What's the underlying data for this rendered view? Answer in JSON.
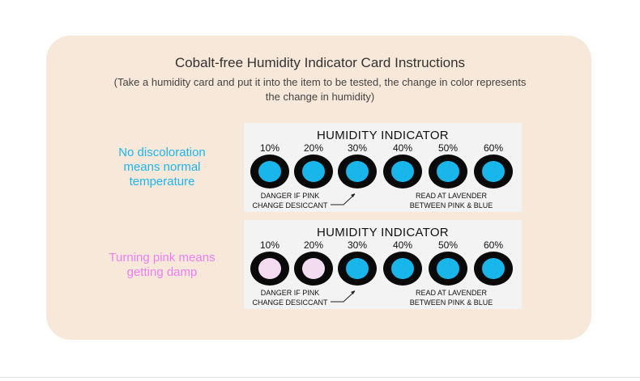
{
  "title": "Cobalt-free Humidity Indicator Card Instructions",
  "subtitle": "(Take a humidity card and put it into the item to be tested, the change in color represents the change in humidity)",
  "colors": {
    "panel": "#f7e8da",
    "normal_label": "#1fb4ee",
    "pink_label": "#f07ef0",
    "blue_dot": "#18b6ea",
    "pink_dot": "#f3dcf0"
  },
  "rows": [
    {
      "label": [
        "No discoloration",
        "means normal",
        "temperature"
      ],
      "label_color": "#1fb4ee",
      "card": {
        "title": "HUMIDITY INDICATOR",
        "levels": [
          "10%",
          "20%",
          "30%",
          "40%",
          "50%",
          "60%"
        ],
        "dot_colors": [
          "blue",
          "blue",
          "blue",
          "blue",
          "blue",
          "blue"
        ],
        "note_left": [
          "DANGER IF PINK",
          "CHANGE DESICCANT"
        ],
        "note_right": [
          "READ AT LAVENDER",
          "BETWEEN PINK & BLUE"
        ]
      }
    },
    {
      "label": [
        "Turning pink means",
        "getting damp"
      ],
      "label_color": "#f07ef0",
      "card": {
        "title": "HUMIDITY INDICATOR",
        "levels": [
          "10%",
          "20%",
          "30%",
          "40%",
          "50%",
          "60%"
        ],
        "dot_colors": [
          "pink",
          "pink",
          "blue",
          "blue",
          "blue",
          "blue"
        ],
        "note_left": [
          "DANGER IF PINK",
          "CHANGE DESICCANT"
        ],
        "note_right": [
          "READ AT LAVENDER",
          "BETWEEN PINK & BLUE"
        ]
      }
    }
  ]
}
